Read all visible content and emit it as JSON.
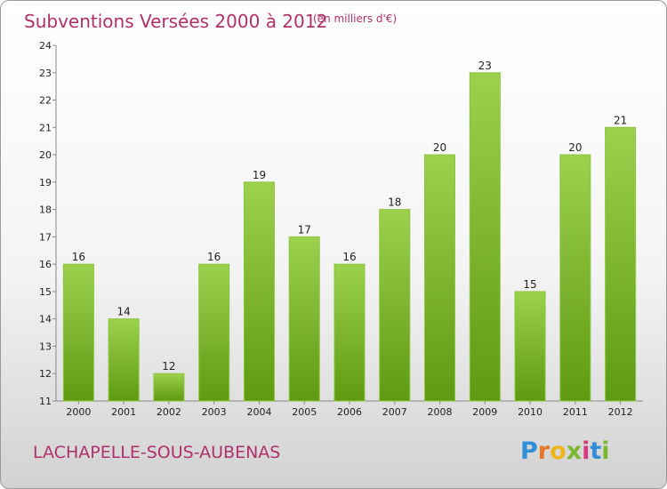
{
  "chart_data": {
    "type": "bar",
    "title": "Subventions Versées 2000 à 2012",
    "subtitle": "(en milliers d'€)",
    "categories": [
      "2000",
      "2001",
      "2002",
      "2003",
      "2004",
      "2005",
      "2006",
      "2007",
      "2008",
      "2009",
      "2010",
      "2011",
      "2012"
    ],
    "values": [
      16,
      14,
      12,
      16,
      19,
      17,
      16,
      18,
      20,
      23,
      15,
      20,
      21
    ],
    "ylim": [
      11,
      24
    ],
    "yticks": [
      11,
      12,
      13,
      14,
      15,
      16,
      17,
      18,
      19,
      20,
      21,
      22,
      23,
      24
    ],
    "grid": false,
    "colors": {
      "bar_top": "#9cd14e",
      "bar_bottom": "#5e9a12",
      "title": "#b0306c"
    }
  },
  "location": "LACHAPELLE-SOUS-AUBENAS",
  "brand": {
    "name": "Proxiti",
    "letters": [
      "P",
      "r",
      "o",
      "x",
      "i",
      "t",
      "i"
    ],
    "letter_colors": [
      "#2f8fd8",
      "#e8772a",
      "#f1b51c",
      "#79b830",
      "#d63a78",
      "#2f8fd8",
      "#79b830"
    ]
  }
}
